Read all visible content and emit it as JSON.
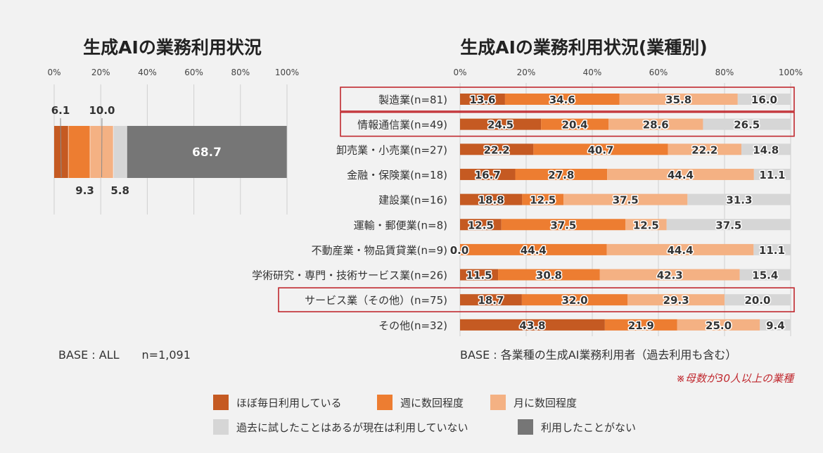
{
  "colors": {
    "daily": "#c55a22",
    "weekly": "#ed7d31",
    "monthly": "#f4b183",
    "past": "#d6d6d6",
    "never": "#767676",
    "highlight": "#c0282e",
    "note": "#c0282e"
  },
  "legend": [
    {
      "key": "daily",
      "label": "ほぼ毎日利用している"
    },
    {
      "key": "weekly",
      "label": "週に数回程度"
    },
    {
      "key": "monthly",
      "label": "月に数回程度"
    },
    {
      "key": "past",
      "label": "過去に試したことはあるが現在は利用していない"
    },
    {
      "key": "never",
      "label": "利用したことがない"
    }
  ],
  "chart_data": [
    {
      "type": "bar",
      "orientation": "horizontal-stacked",
      "title": "生成AIの業務利用状況",
      "xlim": [
        0,
        100
      ],
      "x_ticks": [
        "0%",
        "20%",
        "40%",
        "60%",
        "80%",
        "100%"
      ],
      "grid": true,
      "series": [
        {
          "key": "daily",
          "values": [
            6.1
          ]
        },
        {
          "key": "weekly",
          "values": [
            9.3
          ]
        },
        {
          "key": "monthly",
          "values": [
            10.0
          ]
        },
        {
          "key": "past",
          "values": [
            5.8
          ]
        },
        {
          "key": "never",
          "values": [
            68.7
          ]
        }
      ],
      "labels": {
        "daily": "6.1",
        "weekly": "9.3",
        "monthly": "10.0",
        "past": "5.8",
        "never": "68.7"
      },
      "base_note": "BASE : ALL　　n=1,091"
    },
    {
      "type": "bar",
      "orientation": "horizontal-stacked",
      "title": "生成AIの業務利用状況(業種別)",
      "xlim": [
        0,
        100
      ],
      "x_ticks": [
        "0%",
        "20%",
        "40%",
        "60%",
        "80%",
        "100%"
      ],
      "grid": true,
      "categories": [
        "製造業(n=81)",
        "情報通信業(n=49)",
        "卸売業・小売業(n=27)",
        "金融・保険業(n=18)",
        "建設業(n=16)",
        "運輸・郵便業(n=8)",
        "不動産業・物品賃貸業(n=9)",
        "学術研究・専門・技術サービス業(n=26)",
        "サービス業（その他）(n=75)",
        "その他(n=32)"
      ],
      "highlighted": [
        0,
        1,
        8
      ],
      "series": [
        {
          "key": "daily",
          "values": [
            13.6,
            24.5,
            22.2,
            16.7,
            18.8,
            12.5,
            0.0,
            11.5,
            18.7,
            43.8
          ]
        },
        {
          "key": "weekly",
          "values": [
            34.6,
            20.4,
            40.7,
            27.8,
            12.5,
            37.5,
            44.4,
            30.8,
            32.0,
            21.9
          ]
        },
        {
          "key": "monthly",
          "values": [
            35.8,
            28.6,
            22.2,
            44.4,
            37.5,
            12.5,
            44.4,
            42.3,
            29.3,
            25.0
          ]
        },
        {
          "key": "past",
          "values": [
            16.0,
            26.5,
            14.8,
            11.1,
            31.3,
            37.5,
            11.1,
            15.4,
            20.0,
            9.4
          ]
        }
      ],
      "base_note": "BASE : 各業種の生成AI業務利用者（過去利用も含む）",
      "footnote": "※母数が30人以上の業種"
    }
  ]
}
